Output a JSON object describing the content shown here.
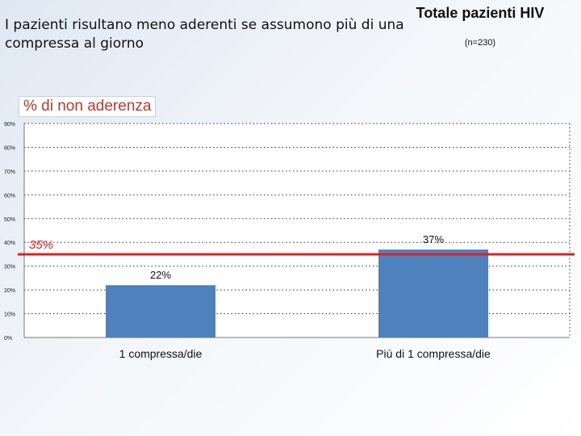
{
  "title": "I pazienti risultano meno aderenti se assumono più di una compressa al giorno",
  "headline": "Totale pazienti HIV",
  "subhead": "(n=230)",
  "colors": {
    "bar": "#4f81bd",
    "reference_line": "#e02020",
    "reference_text": "#e02020",
    "ylabel": "#c0392b"
  },
  "chart_data": {
    "type": "bar",
    "ylabel": "% di non aderenza",
    "xlabel": "",
    "categories": [
      "1 compressa/die",
      "Più di 1 compressa/die"
    ],
    "values": [
      22,
      37
    ],
    "value_labels": [
      "22%",
      "37%"
    ],
    "ylim": [
      0,
      90
    ],
    "yticks": [
      0,
      10,
      20,
      30,
      40,
      50,
      60,
      70,
      80,
      90
    ],
    "ytick_labels": [
      "0%",
      "10%",
      "20%",
      "30%",
      "40%",
      "50%",
      "60%",
      "70%",
      "80%",
      "90%"
    ],
    "grid": true,
    "reference_line": {
      "value": 35,
      "label": "35%"
    }
  }
}
